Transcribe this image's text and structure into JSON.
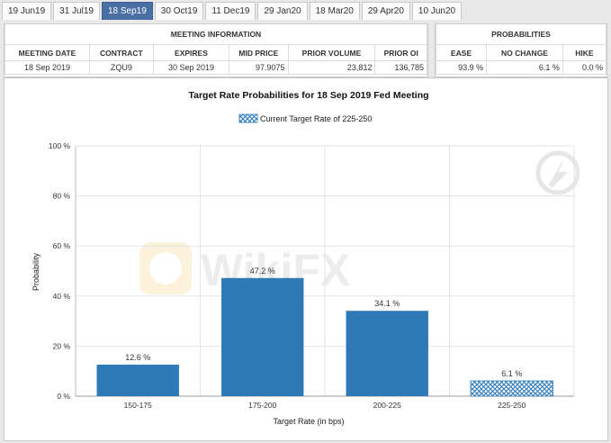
{
  "tabs": [
    "19 Jun19",
    "31 Jul19",
    "18 Sep19",
    "30 Oct19",
    "11 Dec19",
    "29 Jan20",
    "18 Mar20",
    "29 Apr20",
    "10 Jun20"
  ],
  "active_tab": "18 Sep19",
  "meeting_info": {
    "title": "MEETING INFORMATION",
    "headers": [
      "MEETING DATE",
      "CONTRACT",
      "EXPIRES",
      "MID PRICE",
      "PRIOR VOLUME",
      "PRIOR OI"
    ],
    "row": [
      "18 Sep 2019",
      "ZQU9",
      "30 Sep 2019",
      "97.9075",
      "23,812",
      "136,785"
    ]
  },
  "probabilities": {
    "title": "PROBABILITIES",
    "headers": [
      "EASE",
      "NO CHANGE",
      "HIKE"
    ],
    "row": [
      "93.9 %",
      "6.1 %",
      "0.0 %"
    ]
  },
  "watermark": "WikiFX",
  "colors": {
    "bar": "#2e7ab8",
    "active_tab": "#4a6fa5",
    "grid": "#e3e3e3"
  },
  "chart_data": {
    "type": "bar",
    "title": "Target Rate Probabilities for 18 Sep 2019 Fed Meeting",
    "legend": "Current Target Rate of 225-250",
    "legend_position": "top-center",
    "xlabel": "Target Rate (in bps)",
    "ylabel": "Probability",
    "ylim": [
      0,
      100
    ],
    "yticks": [
      "0 %",
      "20 %",
      "40 %",
      "60 %",
      "80 %",
      "100 %"
    ],
    "categories": [
      "150-175",
      "175-200",
      "200-225",
      "225-250"
    ],
    "values": [
      12.6,
      47.2,
      34.1,
      6.1
    ],
    "value_labels": [
      "12.6 %",
      "47.2 %",
      "34.1 %",
      "6.1 %"
    ],
    "current_target_category": "225-250",
    "grid": true
  }
}
